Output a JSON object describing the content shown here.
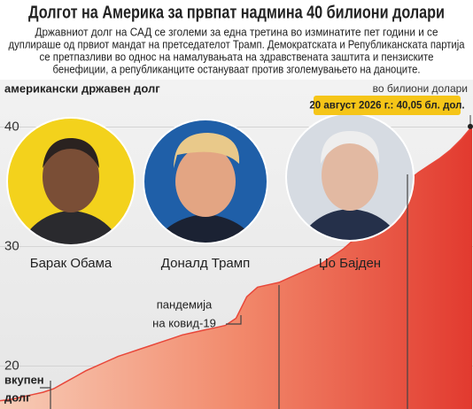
{
  "chart_data": {
    "type": "area",
    "title": "Долгот на Америка за првпат надмина 40 билиони долари",
    "subtitle": [
      "Државниот долг на САД се зголеми за една третина во изминатите пет години и се",
      "дуплираше од првиот мандат на претседателот Трамп. Демократската и Републиканската партија",
      "се претпазливи во однос на намалувањата на здравствената заштита и пензиските",
      "бенефиции, а републиканците остануваат против зголемувањето на даноците."
    ],
    "y_axis_label": "американски државен долг",
    "unit_label": "во билиони долари",
    "series_label": [
      "вкупен",
      "долг"
    ],
    "annotation": "20 август 2026 г.: 40,05 бл. дол.",
    "event_label": [
      "пандемија",
      "на ковид-19"
    ],
    "presidents": [
      "Барак Обама",
      "Доналд Трамп",
      "Џо Бајден"
    ],
    "values": [
      17.1,
      17.2,
      17.4,
      17.6,
      17.8,
      18.1,
      18.6,
      19.1,
      19.6,
      20.0,
      20.4,
      20.8,
      21.1,
      21.4,
      21.7,
      22.0,
      22.3,
      22.6,
      22.8,
      23.0,
      23.2,
      23.4,
      24.0,
      25.8,
      26.6,
      26.8,
      27.0,
      27.4,
      27.8,
      28.2,
      28.6,
      29.2,
      29.8,
      30.6,
      31.4,
      31.9,
      33.0,
      34.0,
      35.5,
      36.2,
      36.8,
      37.4,
      38.1,
      39.0,
      40.05
    ],
    "color": "#e8473a",
    "ylim": [
      16.4,
      43.6
    ],
    "yticks": [
      20,
      30,
      40
    ]
  }
}
